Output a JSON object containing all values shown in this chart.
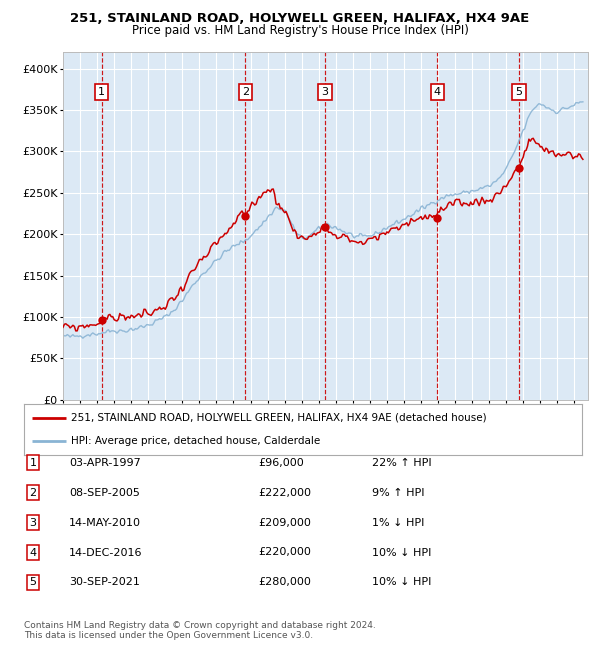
{
  "title": "251, STAINLAND ROAD, HOLYWELL GREEN, HALIFAX, HX4 9AE",
  "subtitle": "Price paid vs. HM Land Registry's House Price Index (HPI)",
  "ylim": [
    0,
    420000
  ],
  "yticks": [
    0,
    50000,
    100000,
    150000,
    200000,
    250000,
    300000,
    350000,
    400000
  ],
  "xlim_start": 1995.0,
  "xlim_end": 2025.8,
  "background_color": "#dce9f5",
  "grid_color": "#ffffff",
  "transactions": [
    {
      "num": 1,
      "date_str": "03-APR-1997",
      "year": 1997.27,
      "price": 96000,
      "pct": "22%",
      "dir": "↑"
    },
    {
      "num": 2,
      "date_str": "08-SEP-2005",
      "year": 2005.69,
      "price": 222000,
      "pct": "9%",
      "dir": "↑"
    },
    {
      "num": 3,
      "date_str": "14-MAY-2010",
      "year": 2010.37,
      "price": 209000,
      "pct": "1%",
      "dir": "↓"
    },
    {
      "num": 4,
      "date_str": "14-DEC-2016",
      "year": 2016.96,
      "price": 220000,
      "pct": "10%",
      "dir": "↓"
    },
    {
      "num": 5,
      "date_str": "30-SEP-2021",
      "year": 2021.75,
      "price": 280000,
      "pct": "10%",
      "dir": "↓"
    }
  ],
  "legend_label_red": "251, STAINLAND ROAD, HOLYWELL GREEN, HALIFAX, HX4 9AE (detached house)",
  "legend_label_blue": "HPI: Average price, detached house, Calderdale",
  "footer_line1": "Contains HM Land Registry data © Crown copyright and database right 2024.",
  "footer_line2": "This data is licensed under the Open Government Licence v3.0.",
  "red_color": "#cc0000",
  "blue_color": "#8ab4d4",
  "marker_color": "#cc0000",
  "dashed_color": "#cc0000",
  "box_color": "#cc0000",
  "hpi_anchors": [
    [
      1995.0,
      77000
    ],
    [
      1995.5,
      76000
    ],
    [
      1996.0,
      77500
    ],
    [
      1996.5,
      79000
    ],
    [
      1997.0,
      80000
    ],
    [
      1997.5,
      82000
    ],
    [
      1998.0,
      84000
    ],
    [
      1998.5,
      83000
    ],
    [
      1999.0,
      85000
    ],
    [
      1999.5,
      87000
    ],
    [
      2000.0,
      90000
    ],
    [
      2000.5,
      95000
    ],
    [
      2001.0,
      100000
    ],
    [
      2001.5,
      108000
    ],
    [
      2002.0,
      120000
    ],
    [
      2002.5,
      135000
    ],
    [
      2003.0,
      148000
    ],
    [
      2003.5,
      158000
    ],
    [
      2004.0,
      168000
    ],
    [
      2004.5,
      178000
    ],
    [
      2005.0,
      185000
    ],
    [
      2005.5,
      190000
    ],
    [
      2006.0,
      198000
    ],
    [
      2006.5,
      208000
    ],
    [
      2007.0,
      220000
    ],
    [
      2007.5,
      232000
    ],
    [
      2008.0,
      228000
    ],
    [
      2008.3,
      218000
    ],
    [
      2008.7,
      200000
    ],
    [
      2009.0,
      195000
    ],
    [
      2009.5,
      198000
    ],
    [
      2010.0,
      206000
    ],
    [
      2010.5,
      212000
    ],
    [
      2011.0,
      208000
    ],
    [
      2011.5,
      203000
    ],
    [
      2012.0,
      198000
    ],
    [
      2012.5,
      196000
    ],
    [
      2013.0,
      198000
    ],
    [
      2013.5,
      202000
    ],
    [
      2014.0,
      208000
    ],
    [
      2014.5,
      213000
    ],
    [
      2015.0,
      218000
    ],
    [
      2015.5,
      224000
    ],
    [
      2016.0,
      230000
    ],
    [
      2016.5,
      236000
    ],
    [
      2017.0,
      242000
    ],
    [
      2017.5,
      246000
    ],
    [
      2018.0,
      248000
    ],
    [
      2018.5,
      250000
    ],
    [
      2019.0,
      252000
    ],
    [
      2019.5,
      255000
    ],
    [
      2020.0,
      258000
    ],
    [
      2020.5,
      265000
    ],
    [
      2021.0,
      278000
    ],
    [
      2021.5,
      300000
    ],
    [
      2022.0,
      325000
    ],
    [
      2022.3,
      340000
    ],
    [
      2022.6,
      352000
    ],
    [
      2023.0,
      358000
    ],
    [
      2023.5,
      352000
    ],
    [
      2024.0,
      348000
    ],
    [
      2024.5,
      352000
    ],
    [
      2025.0,
      356000
    ],
    [
      2025.5,
      360000
    ]
  ],
  "red_anchors": [
    [
      1995.0,
      88000
    ],
    [
      1995.5,
      87000
    ],
    [
      1996.0,
      88000
    ],
    [
      1996.5,
      90000
    ],
    [
      1997.0,
      92000
    ],
    [
      1997.27,
      96000
    ],
    [
      1997.5,
      98000
    ],
    [
      1998.0,
      99000
    ],
    [
      1998.5,
      100000
    ],
    [
      1999.0,
      101000
    ],
    [
      1999.5,
      102000
    ],
    [
      2000.0,
      103000
    ],
    [
      2000.5,
      108000
    ],
    [
      2001.0,
      114000
    ],
    [
      2001.5,
      122000
    ],
    [
      2002.0,
      136000
    ],
    [
      2002.5,
      152000
    ],
    [
      2003.0,
      165000
    ],
    [
      2003.5,
      175000
    ],
    [
      2004.0,
      188000
    ],
    [
      2004.5,
      200000
    ],
    [
      2005.0,
      210000
    ],
    [
      2005.5,
      225000
    ],
    [
      2005.69,
      222000
    ],
    [
      2006.0,
      232000
    ],
    [
      2006.5,
      245000
    ],
    [
      2007.0,
      255000
    ],
    [
      2007.3,
      252000
    ],
    [
      2007.5,
      242000
    ],
    [
      2008.0,
      228000
    ],
    [
      2008.3,
      215000
    ],
    [
      2008.7,
      198000
    ],
    [
      2009.0,
      195000
    ],
    [
      2009.5,
      196000
    ],
    [
      2010.0,
      208000
    ],
    [
      2010.37,
      209000
    ],
    [
      2010.5,
      207000
    ],
    [
      2011.0,
      200000
    ],
    [
      2011.5,
      196000
    ],
    [
      2012.0,
      192000
    ],
    [
      2012.5,
      190000
    ],
    [
      2013.0,
      192000
    ],
    [
      2013.5,
      196000
    ],
    [
      2014.0,
      202000
    ],
    [
      2014.5,
      207000
    ],
    [
      2015.0,
      212000
    ],
    [
      2015.5,
      216000
    ],
    [
      2016.0,
      220000
    ],
    [
      2016.5,
      222000
    ],
    [
      2016.96,
      220000
    ],
    [
      2017.0,
      225000
    ],
    [
      2017.3,
      230000
    ],
    [
      2017.5,
      232000
    ],
    [
      2018.0,
      235000
    ],
    [
      2018.5,
      237000
    ],
    [
      2019.0,
      238000
    ],
    [
      2019.5,
      240000
    ],
    [
      2020.0,
      242000
    ],
    [
      2020.5,
      248000
    ],
    [
      2021.0,
      260000
    ],
    [
      2021.5,
      275000
    ],
    [
      2021.75,
      280000
    ],
    [
      2022.0,
      295000
    ],
    [
      2022.3,
      308000
    ],
    [
      2022.6,
      315000
    ],
    [
      2023.0,
      305000
    ],
    [
      2023.5,
      298000
    ],
    [
      2024.0,
      295000
    ],
    [
      2024.5,
      298000
    ],
    [
      2025.0,
      295000
    ],
    [
      2025.5,
      292000
    ]
  ]
}
